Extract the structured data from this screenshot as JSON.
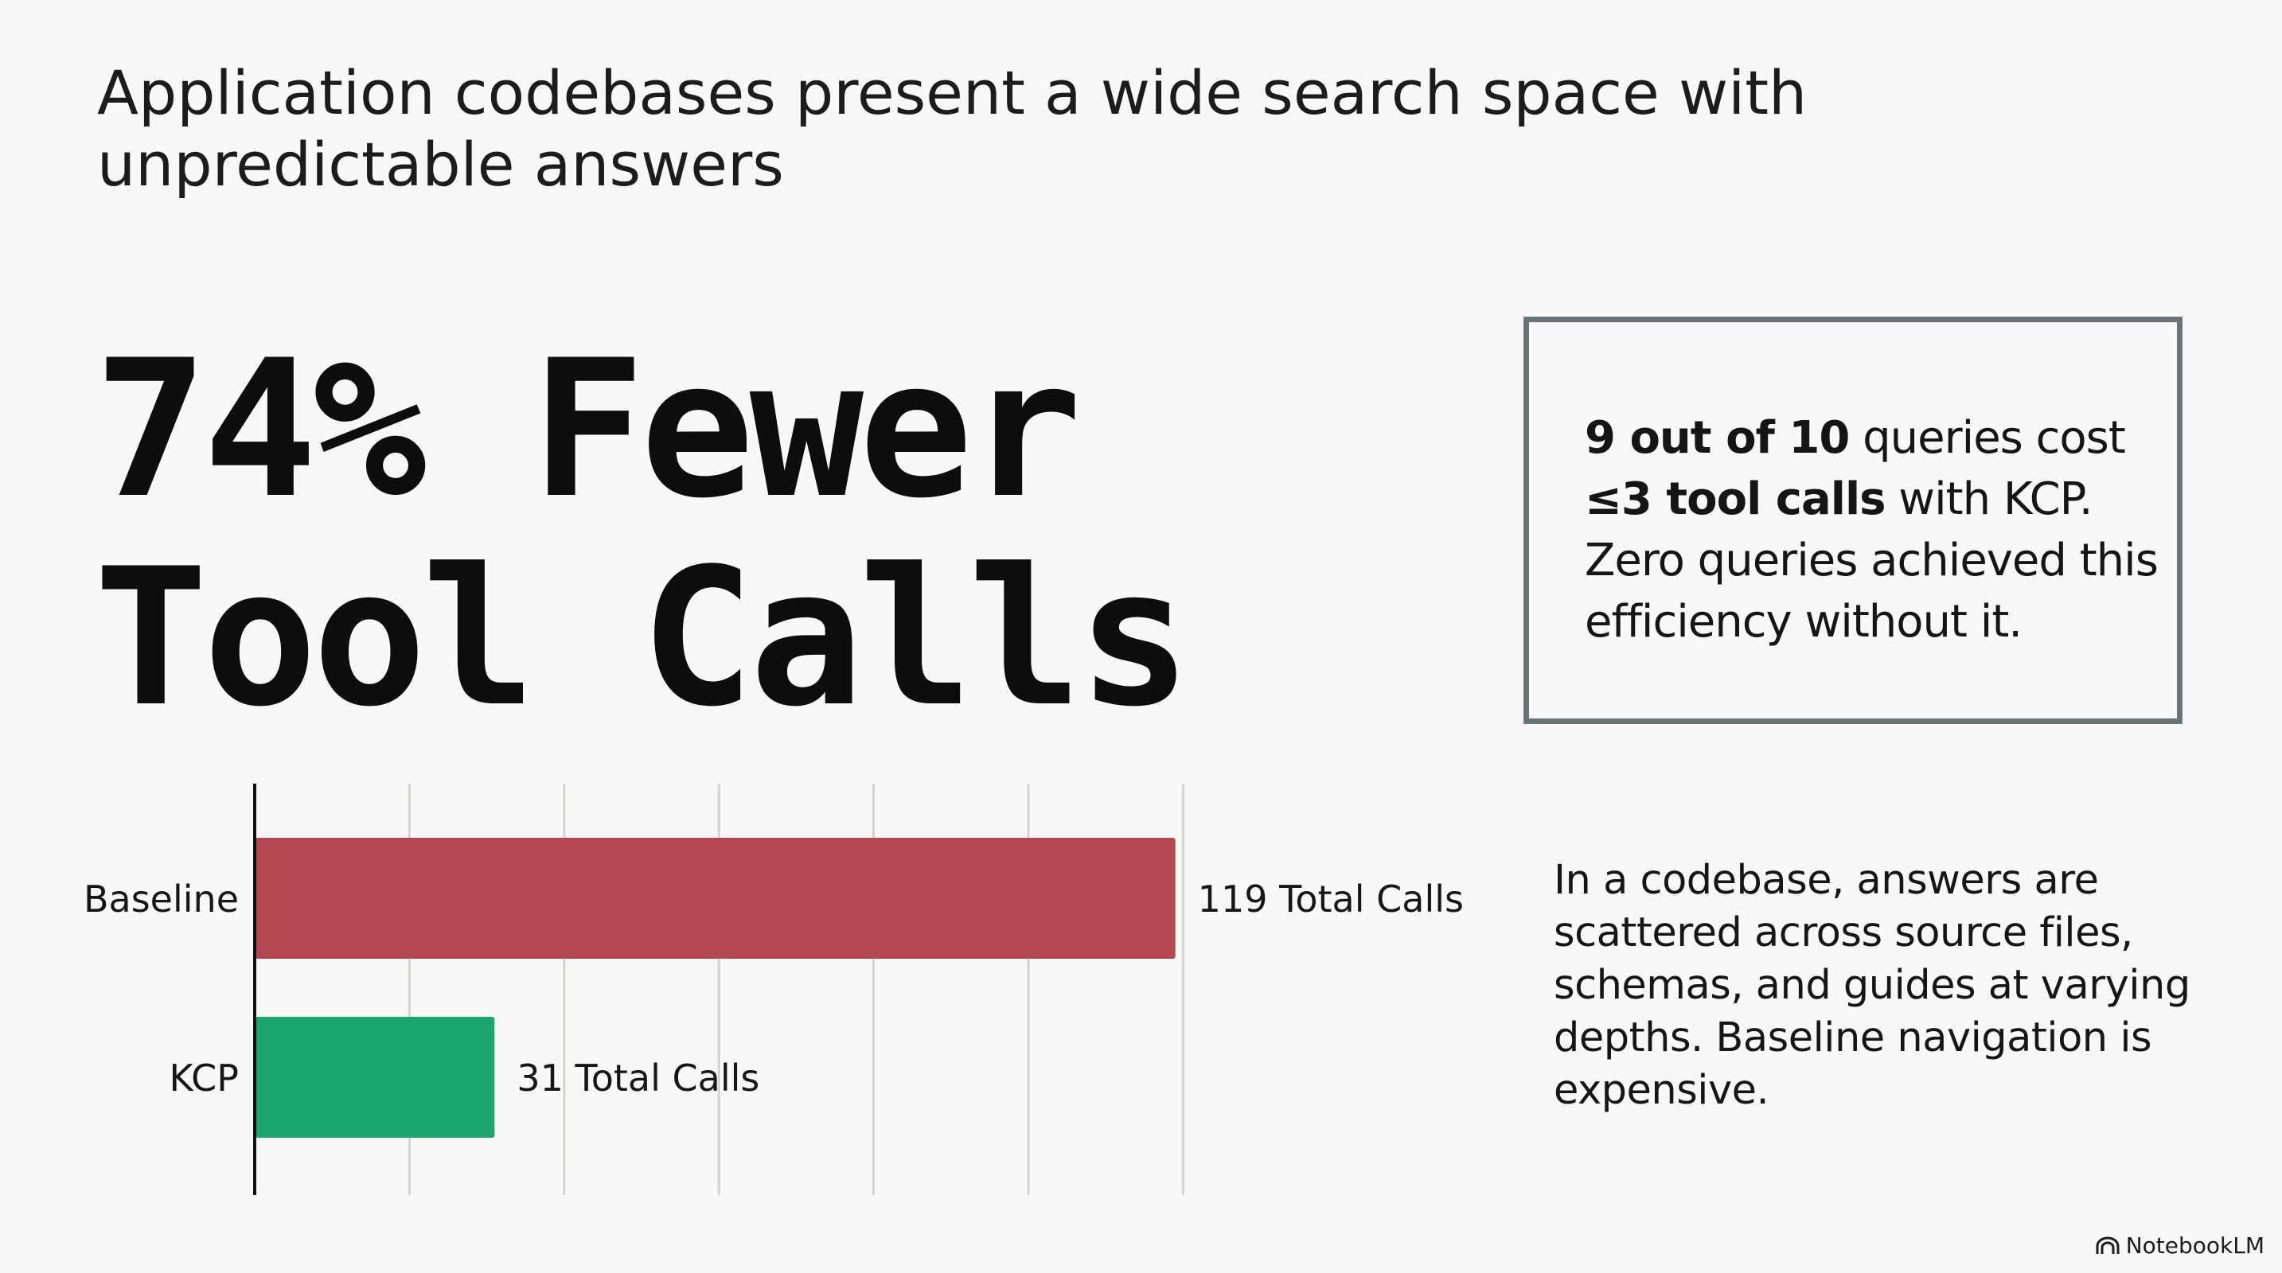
{
  "title": "Application codebases present a wide search space with unpredictable answers",
  "headline": {
    "line1": "74% Fewer",
    "line2": "Tool Calls"
  },
  "callout": {
    "part1_bold": "9 out of 10",
    "part2": " queries cost ",
    "part3_bold": "≤3 tool calls",
    "part4": " with KCP. Zero queries achieved this efficiency without it."
  },
  "description": "In a codebase, answers are scattered across source files, schemas, and guides at varying depths. Baseline navigation is expensive.",
  "brand": {
    "label": "NotebookLM",
    "icon": "notebooklm-logo-icon"
  },
  "colors": {
    "baseline": "#b44652",
    "kcp": "#1ca56e",
    "grid": "#d3d3d1",
    "axis": "#111111",
    "box_border": "#6a7378"
  },
  "chart_data": {
    "type": "bar",
    "orientation": "horizontal",
    "categories": [
      "Baseline",
      "KCP"
    ],
    "values": [
      119,
      31
    ],
    "data_labels": [
      "119 Total Calls",
      "31 Total Calls"
    ],
    "xlim": [
      0,
      120
    ],
    "grid": true,
    "title": "",
    "xlabel": "",
    "ylabel": ""
  }
}
